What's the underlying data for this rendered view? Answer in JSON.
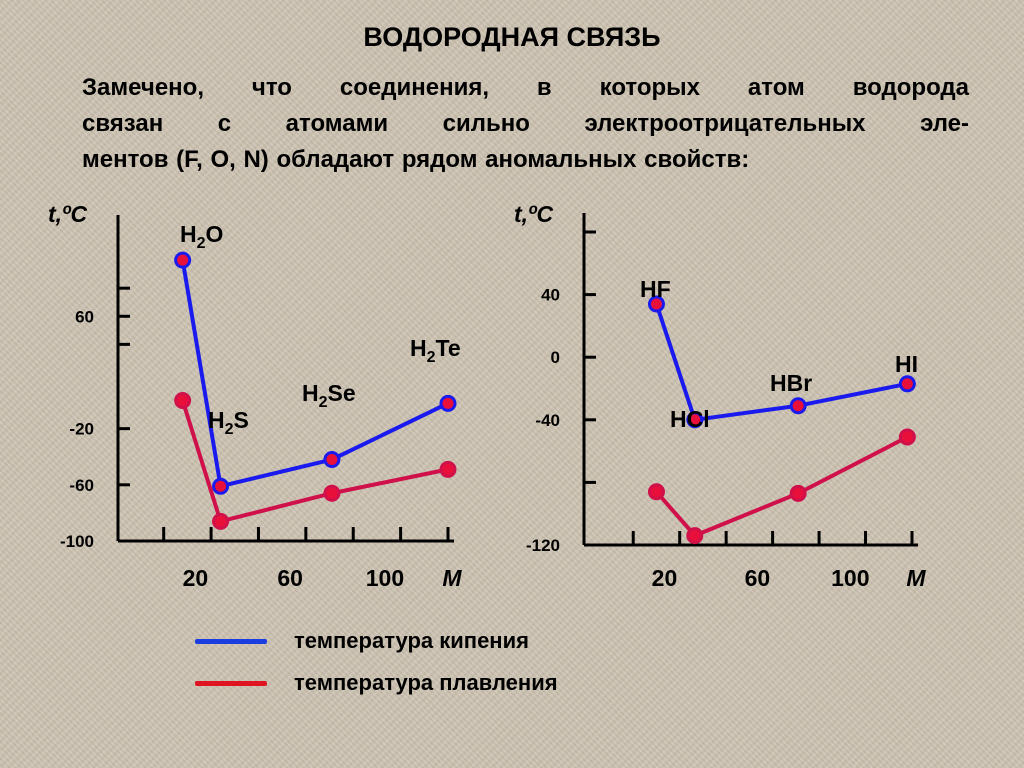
{
  "title": "ВОДОРОДНАЯ СВЯЗЬ",
  "intro_lines": [
    "Замечено, что соединения, в которых атом водорода",
    "связан с атомами сильно электроотрицательных эле-",
    "ментов (F, O, N) обладают рядом аномальных свойств:"
  ],
  "colors": {
    "boiling_line": "#1a1aee",
    "melting_line": "#d0104a",
    "marker_fill": "#e8103a",
    "legend_boiling": "#1a3ce0",
    "legend_melting": "#e01420"
  },
  "legend": [
    {
      "label": "температура кипения",
      "color": "#1a3ce0"
    },
    {
      "label": "температура плавления",
      "color": "#e01420"
    }
  ],
  "chart_data": [
    {
      "type": "line",
      "ylabel": "t,ºC",
      "xlabel": "M",
      "x_ticks": [
        20,
        60,
        100
      ],
      "xlim": [
        0,
        130
      ],
      "ylim": [
        -100,
        120
      ],
      "y_ticks": [
        80,
        60,
        40,
        -20,
        -60,
        -100
      ],
      "y_tick_labels": [
        "",
        "60",
        "",
        "-20",
        "-60",
        "-100"
      ],
      "series": [
        {
          "values": [
            {
              "x": 18,
              "y": 100,
              "label": "H2O"
            },
            {
              "x": 34,
              "y": -61,
              "label": "H2S"
            },
            {
              "x": 81,
              "y": -42,
              "label": "H2Se"
            },
            {
              "x": 130,
              "y": -2,
              "label": "H2Te"
            }
          ]
        },
        {
          "values": [
            {
              "x": 18,
              "y": 0
            },
            {
              "x": 34,
              "y": -86
            },
            {
              "x": 81,
              "y": -66
            },
            {
              "x": 130,
              "y": -49
            }
          ]
        }
      ],
      "compound_labels": [
        {
          "base": "H",
          "sub": "2",
          "tail": "O"
        },
        {
          "base": "H",
          "sub": "2",
          "tail": "S"
        },
        {
          "base": "H",
          "sub": "2",
          "tail": "Se"
        },
        {
          "base": "H",
          "sub": "2",
          "tail": "Te"
        }
      ]
    },
    {
      "type": "line",
      "ylabel": "t,ºC",
      "xlabel": "M",
      "x_ticks": [
        20,
        60,
        100
      ],
      "xlim": [
        0,
        130
      ],
      "ylim": [
        -120,
        80
      ],
      "y_ticks": [
        80,
        40,
        0,
        -40,
        -80,
        -120
      ],
      "y_tick_labels": [
        "",
        "40",
        "0",
        "-40",
        "",
        "-120"
      ],
      "series": [
        {
          "values": [
            {
              "x": 20,
              "y": 34,
              "label": "HF"
            },
            {
              "x": 36.5,
              "y": -40,
              "label": "HCl"
            },
            {
              "x": 81,
              "y": -31,
              "label": "HBr"
            },
            {
              "x": 128,
              "y": -17,
              "label": "HI"
            }
          ]
        },
        {
          "values": [
            {
              "x": 20,
              "y": -86
            },
            {
              "x": 36.5,
              "y": -114
            },
            {
              "x": 81,
              "y": -87
            },
            {
              "x": 128,
              "y": -51
            }
          ]
        }
      ],
      "compound_labels": [
        {
          "base": "HF",
          "sub": "",
          "tail": ""
        },
        {
          "base": "HCl",
          "sub": "",
          "tail": ""
        },
        {
          "base": "HBr",
          "sub": "",
          "tail": ""
        },
        {
          "base": "HI",
          "sub": "",
          "tail": ""
        }
      ]
    }
  ]
}
